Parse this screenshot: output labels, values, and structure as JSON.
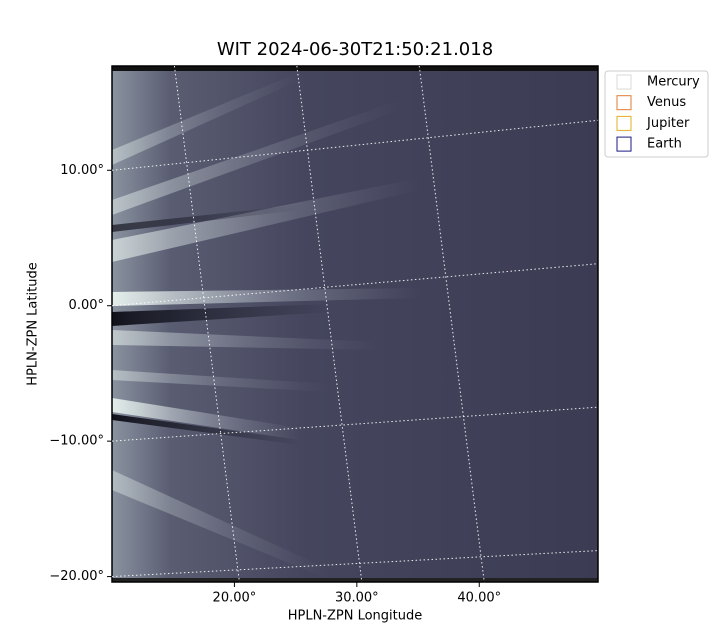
{
  "chart_data": {
    "type": "image",
    "title": "WIT 2024-06-30T21:50:21.018",
    "xlabel": "HPLN-ZPN Longitude",
    "ylabel": "HPLN-ZPN Latitude",
    "xlim": [
      10.0,
      49.7
    ],
    "ylim": [
      -20.4,
      17.7
    ],
    "xticks": [
      {
        "value": 20,
        "label": "20.00°"
      },
      {
        "value": 30,
        "label": "30.00°"
      },
      {
        "value": 40,
        "label": "40.00°"
      }
    ],
    "yticks": [
      {
        "value": 10,
        "label": "10.00°"
      },
      {
        "value": 0,
        "label": "0.00°"
      },
      {
        "value": -10,
        "label": "−10.00°"
      },
      {
        "value": -20,
        "label": "−20.00°"
      }
    ],
    "grid": true,
    "legend": [
      {
        "name": "Mercury",
        "color": "#d9d9d9"
      },
      {
        "name": "Venus",
        "color": "#e07b39"
      },
      {
        "name": "Jupiter",
        "color": "#e0b020"
      },
      {
        "name": "Earth",
        "color": "#1a1a80"
      }
    ]
  }
}
